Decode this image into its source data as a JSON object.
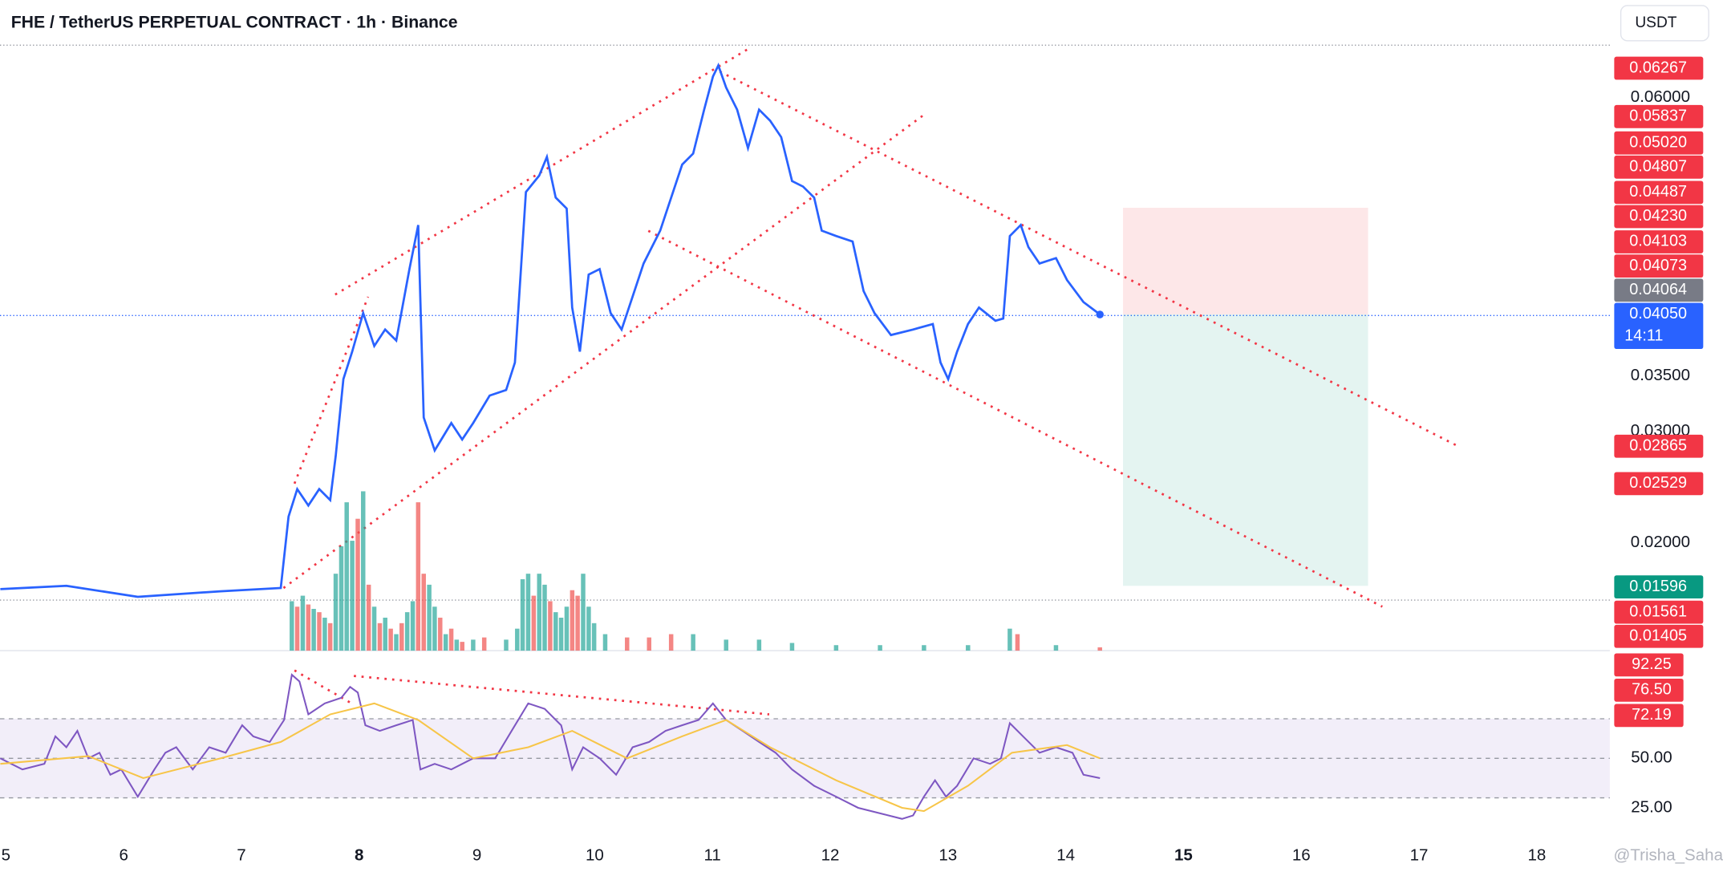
{
  "header": {
    "title": "FHE / TetherUS PERPETUAL CONTRACT · 1h · Binance",
    "currency": "USDT"
  },
  "watermark": "@Trisha_Saha",
  "chart_data": [
    {
      "type": "line",
      "color": "#2962ff",
      "x": [
        4.953,
        5.514,
        6.12,
        6.821,
        7.334,
        7.4,
        7.474,
        7.568,
        7.661,
        7.754,
        7.801,
        7.866,
        7.941,
        8.034,
        8.128,
        8.221,
        8.315,
        8.427,
        8.501,
        8.548,
        8.641,
        8.782,
        8.875,
        8.968,
        9.108,
        9.248,
        9.323,
        9.416,
        9.529,
        9.594,
        9.669,
        9.762,
        9.809,
        9.874,
        9.949,
        10.042,
        10.135,
        10.229,
        10.322,
        10.415,
        10.556,
        10.649,
        10.743,
        10.836,
        10.929,
        11.004,
        11.05,
        11.116,
        11.209,
        11.302,
        11.396,
        11.489,
        11.583,
        11.676,
        11.769,
        11.863,
        11.928,
        12.05,
        12.19,
        12.283,
        12.376,
        12.516,
        12.703,
        12.871,
        12.936,
        13.002,
        13.077,
        13.17,
        13.263,
        13.403,
        13.469,
        13.525,
        13.618,
        13.683,
        13.777,
        13.917,
        14.01,
        14.15,
        14.29
      ],
      "values": [
        0.01583,
        0.01613,
        0.01514,
        0.01563,
        0.01593,
        0.02235,
        0.02482,
        0.02334,
        0.02482,
        0.02383,
        0.02779,
        0.0347,
        0.03717,
        0.04063,
        0.03767,
        0.03915,
        0.03816,
        0.04458,
        0.04854,
        0.03125,
        0.02829,
        0.03075,
        0.02927,
        0.03075,
        0.03322,
        0.03372,
        0.03619,
        0.0515,
        0.05298,
        0.05466,
        0.05101,
        0.05002,
        0.04113,
        0.03717,
        0.04409,
        0.04458,
        0.04063,
        0.03915,
        0.04211,
        0.04508,
        0.04804,
        0.05101,
        0.05397,
        0.05496,
        0.05891,
        0.06188,
        0.06287,
        0.06089,
        0.05891,
        0.05545,
        0.05891,
        0.05792,
        0.05644,
        0.05249,
        0.052,
        0.05101,
        0.04804,
        0.04755,
        0.04706,
        0.04261,
        0.04063,
        0.03866,
        0.03915,
        0.03964,
        0.03619,
        0.0347,
        0.03717,
        0.03964,
        0.04113,
        0.03994,
        0.04014,
        0.04755,
        0.04854,
        0.04656,
        0.04508,
        0.04557,
        0.0436,
        0.04162,
        0.0405
      ],
      "xlim": [
        4.95,
        18.62
      ],
      "xticks": [
        5,
        6,
        7,
        8,
        9,
        10,
        11,
        12,
        13,
        14,
        15,
        16,
        17,
        18
      ],
      "bold_xticks": [
        8,
        15
      ],
      "ylim": [
        0.0105,
        0.0648
      ],
      "yticks": [
        {
          "value": 0.06,
          "label": "0.06000"
        },
        {
          "value": 0.035,
          "label": "0.03500"
        },
        {
          "value": 0.03,
          "label": "0.03000"
        },
        {
          "value": 0.02,
          "label": "0.02000"
        }
      ],
      "price_tags": [
        {
          "value": 0.06267,
          "color": "#f23645"
        },
        {
          "value": 0.05837,
          "color": "#f23645"
        },
        {
          "value": 0.0502,
          "label": "0.05020",
          "color": "#f23645"
        },
        {
          "value": 0.04807,
          "color": "#f23645"
        },
        {
          "value": 0.04487,
          "color": "#f23645"
        },
        {
          "value": 0.0423,
          "label": "0.04230",
          "color": "#f23645"
        },
        {
          "value": 0.04103,
          "color": "#f23645"
        },
        {
          "value": 0.04073,
          "color": "#f23645"
        },
        {
          "value": 0.04064,
          "color": "#787b86"
        },
        {
          "value": 0.0405,
          "label": "0.04050",
          "color": "#2962ff",
          "countdown": "14:11"
        },
        {
          "value": 0.02865,
          "color": "#f23645"
        },
        {
          "value": 0.02529,
          "color": "#f23645"
        },
        {
          "value": 0.01596,
          "color": "#089981"
        },
        {
          "value": 0.01561,
          "color": "#f23645"
        },
        {
          "value": 0.01405,
          "color": "#f23645"
        }
      ]
    },
    {
      "type": "bar",
      "x": [
        7.428,
        7.474,
        7.521,
        7.568,
        7.614,
        7.661,
        7.708,
        7.754,
        7.801,
        7.848,
        7.894,
        7.941,
        7.988,
        8.034,
        8.081,
        8.128,
        8.175,
        8.221,
        8.268,
        8.315,
        8.361,
        8.408,
        8.455,
        8.501,
        8.548,
        8.595,
        8.641,
        8.688,
        8.735,
        8.782,
        8.828,
        8.875,
        8.968,
        9.062,
        9.248,
        9.342,
        9.388,
        9.435,
        9.482,
        9.529,
        9.575,
        9.622,
        9.669,
        9.715,
        9.762,
        9.809,
        9.855,
        9.902,
        9.949,
        9.995,
        10.089,
        10.275,
        10.462,
        10.649,
        10.836,
        11.116,
        11.396,
        11.676,
        12.05,
        12.423,
        12.796,
        13.17,
        13.525,
        13.59,
        13.917,
        14.29
      ],
      "values": [
        45,
        40,
        50,
        42,
        38,
        35,
        30,
        25,
        70,
        95,
        135,
        100,
        120,
        145,
        60,
        40,
        25,
        30,
        20,
        15,
        25,
        35,
        45,
        135,
        70,
        60,
        40,
        30,
        15,
        20,
        10,
        8,
        10,
        12,
        10,
        20,
        65,
        70,
        50,
        70,
        60,
        45,
        35,
        30,
        40,
        55,
        50,
        70,
        40,
        25,
        15,
        12,
        12,
        15,
        15,
        10,
        10,
        7,
        5,
        5,
        5,
        5,
        20,
        15,
        5,
        3
      ],
      "colors": [
        "#26a69a",
        "#ef5350",
        "#26a69a",
        "#ef5350",
        "#26a69a",
        "#ef5350",
        "#26a69a",
        "#ef5350",
        "#26a69a",
        "#26a69a",
        "#26a69a",
        "#26a69a",
        "#ef5350",
        "#26a69a",
        "#ef5350",
        "#26a69a",
        "#ef5350",
        "#26a69a",
        "#ef5350",
        "#26a69a",
        "#ef5350",
        "#26a69a",
        "#26a69a",
        "#ef5350",
        "#ef5350",
        "#26a69a",
        "#26a69a",
        "#ef5350",
        "#26a69a",
        "#ef5350",
        "#26a69a",
        "#ef5350",
        "#26a69a",
        "#ef5350",
        "#26a69a",
        "#26a69a",
        "#26a69a",
        "#26a69a",
        "#ef5350",
        "#26a69a",
        "#26a69a",
        "#ef5350",
        "#26a69a",
        "#26a69a",
        "#26a69a",
        "#ef5350",
        "#ef5350",
        "#26a69a",
        "#26a69a",
        "#26a69a",
        "#26a69a",
        "#ef5350",
        "#ef5350",
        "#ef5350",
        "#26a69a",
        "#26a69a",
        "#26a69a",
        "#26a69a",
        "#26a69a",
        "#26a69a",
        "#26a69a",
        "#26a69a",
        "#26a69a",
        "#ef5350",
        "#26a69a",
        "#ef5350"
      ]
    },
    {
      "type": "line",
      "series": [
        {
          "color": "#7e57c2",
          "x": [
            4.953,
            5.14,
            5.327,
            5.42,
            5.514,
            5.607,
            5.7,
            5.794,
            5.887,
            5.98,
            6.12,
            6.261,
            6.354,
            6.447,
            6.587,
            6.727,
            6.867,
            7.007,
            7.101,
            7.241,
            7.362,
            7.428,
            7.493,
            7.568,
            7.708,
            7.848,
            7.923,
            7.988,
            8.053,
            8.175,
            8.315,
            8.455,
            8.52,
            8.641,
            8.782,
            8.968,
            9.155,
            9.295,
            9.435,
            9.575,
            9.715,
            9.809,
            9.902,
            10.042,
            10.182,
            10.322,
            10.462,
            10.602,
            10.742,
            10.882,
            11.004,
            11.116,
            11.256,
            11.396,
            11.536,
            11.676,
            11.863,
            12.05,
            12.237,
            12.423,
            12.61,
            12.703,
            12.796,
            12.89,
            12.983,
            13.077,
            13.217,
            13.357,
            13.45,
            13.525,
            13.637,
            13.777,
            13.917,
            14.057,
            14.15,
            14.29
          ],
          "values": [
            50,
            44.4,
            47.2,
            61.1,
            55.6,
            63.9,
            50,
            52.8,
            41.7,
            44.4,
            30.6,
            44.4,
            52.8,
            55.6,
            44.4,
            55.6,
            52.8,
            66.7,
            61.1,
            58.3,
            69.4,
            92.25,
            88.9,
            72.2,
            77.8,
            80.6,
            86.1,
            83.3,
            66.7,
            63.9,
            66.7,
            69.4,
            44.4,
            47.2,
            44.4,
            50,
            50,
            63.9,
            77.8,
            75,
            66.7,
            44.4,
            55.6,
            50,
            41.7,
            55.6,
            58.3,
            63.9,
            66.7,
            69.4,
            77.8,
            69.4,
            63.9,
            58.3,
            52.8,
            44.4,
            36.1,
            30.6,
            25,
            22.2,
            19.4,
            21.1,
            30.6,
            38.9,
            30.6,
            36.1,
            50,
            47.2,
            50,
            67.8,
            61.1,
            52.8,
            55.6,
            52.8,
            41.7,
            40
          ]
        },
        {
          "color": "#f7c548",
          "x": [
            4.953,
            5.7,
            6.167,
            6.821,
            7.334,
            7.754,
            8.128,
            8.501,
            8.968,
            9.435,
            9.809,
            10.275,
            10.742,
            11.116,
            11.489,
            12.05,
            12.61,
            12.796,
            13.17,
            13.543,
            14.01,
            14.29
          ],
          "values": [
            47.2,
            51.1,
            40,
            50,
            58.3,
            72.2,
            77.8,
            69.4,
            50,
            55.6,
            63.9,
            50,
            61.1,
            69.4,
            55.6,
            38.9,
            25,
            23.3,
            36.1,
            52.8,
            56.7,
            50
          ]
        }
      ],
      "ylim": [
        11.1,
        100
      ],
      "levels": [
        70,
        50,
        30
      ],
      "yticks": [
        {
          "value": 50,
          "label": "50.00"
        },
        {
          "value": 25,
          "label": "25.00"
        }
      ],
      "tags": [
        {
          "value": 92.25,
          "color": "#f23645"
        },
        {
          "value": 76.5,
          "label": "76.50",
          "color": "#f23645"
        },
        {
          "value": 72.19,
          "color": "#f23645"
        }
      ]
    }
  ]
}
